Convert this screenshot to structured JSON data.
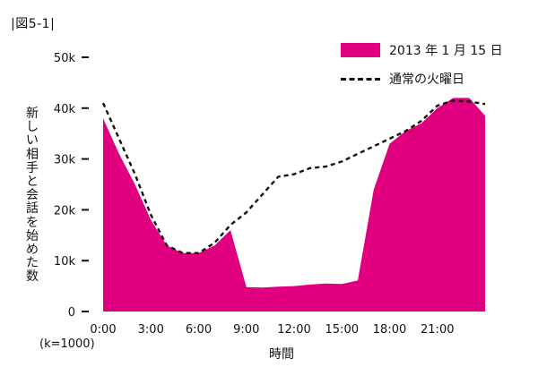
{
  "figure_label": "|図5-1|",
  "unit_note": "(k=1000)",
  "chart_data": {
    "type": "area",
    "title": "",
    "xlabel": "時間",
    "ylabel": "新しい相手と会話を始めた数",
    "ylim": [
      0,
      50000
    ],
    "xlim": [
      0,
      24
    ],
    "yticks": [
      0,
      10000,
      20000,
      30000,
      40000,
      50000
    ],
    "ytick_labels": [
      "0",
      "10k",
      "20k",
      "30k",
      "40k",
      "50k"
    ],
    "xticks": [
      0,
      3,
      6,
      9,
      12,
      15,
      18,
      21
    ],
    "xtick_labels": [
      "0:00",
      "3:00",
      "6:00",
      "9:00",
      "12:00",
      "15:00",
      "18:00",
      "21:00"
    ],
    "grid": false,
    "legend_position": "top-right",
    "series": [
      {
        "name": "2013 年 1 月 15 日",
        "style": "area",
        "color": "#e0007f",
        "x": [
          0,
          1,
          2,
          3,
          4,
          5,
          6,
          7,
          8,
          9,
          10,
          11,
          12,
          13,
          14,
          15,
          16,
          16.5,
          17,
          18,
          19,
          20,
          21,
          22,
          23,
          24
        ],
        "values": [
          38000,
          31000,
          25000,
          18000,
          13000,
          11500,
          11500,
          13000,
          16000,
          4800,
          4700,
          4900,
          5000,
          5300,
          5500,
          5400,
          6100,
          15000,
          24000,
          33000,
          35500,
          37000,
          40000,
          42000,
          42000,
          38500
        ]
      },
      {
        "name": "通常の火曜日",
        "style": "dashed-line",
        "color": "#111111",
        "x": [
          0,
          1,
          2,
          3,
          4,
          5,
          6,
          7,
          8,
          9,
          10,
          11,
          12,
          13,
          14,
          15,
          16,
          17,
          18,
          19,
          20,
          21,
          22,
          23,
          24
        ],
        "values": [
          41000,
          34000,
          27000,
          19000,
          13000,
          11500,
          11500,
          13500,
          17000,
          19500,
          23000,
          26500,
          27000,
          28200,
          28500,
          29500,
          31000,
          32500,
          34000,
          35500,
          37500,
          40500,
          41500,
          41300,
          40800
        ]
      }
    ]
  }
}
